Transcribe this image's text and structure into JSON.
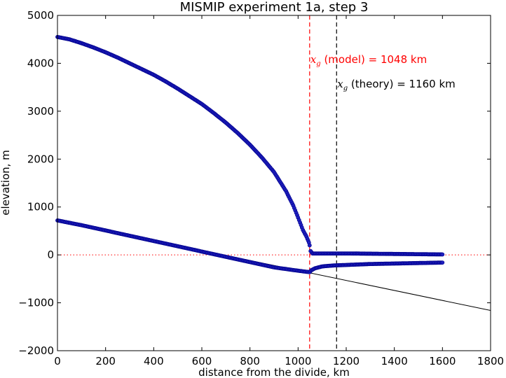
{
  "chart_data": {
    "type": "scatter",
    "title": "MISMIP experiment 1a, step 3",
    "xlabel": "distance from the divide, km",
    "ylabel": "elevation, m",
    "xlim": [
      0,
      1800
    ],
    "ylim": [
      -2000,
      5000
    ],
    "xticks": [
      0,
      200,
      400,
      600,
      800,
      1000,
      1200,
      1400,
      1600,
      1800
    ],
    "yticks": [
      -2000,
      -1000,
      0,
      1000,
      2000,
      3000,
      4000,
      5000
    ],
    "xtick_labels": [
      "0",
      "200",
      "400",
      "600",
      "800",
      "1000",
      "1200",
      "1400",
      "1600",
      "1800"
    ],
    "ytick_labels": [
      "−2000",
      "−1000",
      "0",
      "1000",
      "2000",
      "3000",
      "4000",
      "5000"
    ],
    "grid": false,
    "series": [
      {
        "role": "ice surface elevation",
        "color": "#00008b",
        "x": [
          0,
          50,
          100,
          150,
          200,
          250,
          300,
          350,
          400,
          450,
          500,
          550,
          600,
          650,
          700,
          750,
          800,
          850,
          900,
          950,
          980,
          1000,
          1020,
          1035,
          1045,
          1048,
          1052,
          1060,
          1100,
          1150,
          1200,
          1250,
          1300,
          1400,
          1500,
          1600
        ],
        "y": [
          4550,
          4500,
          4420,
          4330,
          4230,
          4120,
          4000,
          3880,
          3760,
          3620,
          3470,
          3310,
          3150,
          2960,
          2760,
          2540,
          2300,
          2030,
          1730,
          1330,
          1030,
          780,
          520,
          380,
          260,
          200,
          80,
          30,
          30,
          30,
          30,
          28,
          25,
          20,
          15,
          10
        ]
      },
      {
        "role": "ice base elevation",
        "color": "#00008b",
        "x": [
          0,
          100,
          200,
          300,
          400,
          500,
          600,
          700,
          800,
          900,
          1000,
          1048,
          1055,
          1070,
          1100,
          1150,
          1200,
          1250,
          1300,
          1400,
          1500,
          1600
        ],
        "y": [
          720,
          620,
          510,
          400,
          290,
          180,
          70,
          -40,
          -150,
          -260,
          -330,
          -360,
          -320,
          -280,
          -240,
          -220,
          -210,
          -200,
          -190,
          -180,
          -170,
          -160
        ]
      }
    ],
    "bedrock_line": {
      "x": [
        0,
        1800
      ],
      "y": [
        720,
        -1160
      ],
      "color": "#000000"
    },
    "sea_level_line": {
      "y": 0,
      "color": "#ff0000",
      "style": "dotted"
    },
    "grounding_lines": [
      {
        "x": 1048,
        "color": "#ff0000",
        "style": "dashed",
        "label_symbol": "x",
        "label_subscript": "g",
        "label_rest": " (model) = 1048 km"
      },
      {
        "x": 1160,
        "color": "#000000",
        "style": "dashed",
        "label_symbol": "x",
        "label_subscript": "g",
        "label_rest": " (theory) = 1160 km"
      }
    ]
  }
}
